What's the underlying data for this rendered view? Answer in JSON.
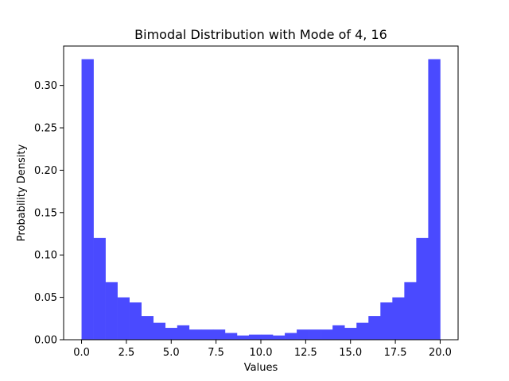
{
  "chart_data": {
    "type": "bar",
    "title": "Bimodal Distribution with Mode of 4, 16",
    "xlabel": "Values",
    "ylabel": "Probability Density",
    "xlim": [
      -1,
      21
    ],
    "ylim": [
      0,
      0.3465
    ],
    "xticks": [
      0,
      2.5,
      5,
      7.5,
      10,
      12.5,
      15,
      17.5,
      20
    ],
    "xtick_labels": [
      "0.0",
      "2.5",
      "5.0",
      "7.5",
      "10.0",
      "12.5",
      "15.0",
      "17.5",
      "20.0"
    ],
    "yticks": [
      0,
      0.05,
      0.1,
      0.15,
      0.2,
      0.25,
      0.3
    ],
    "ytick_labels": [
      "0.00",
      "0.05",
      "0.10",
      "0.15",
      "0.20",
      "0.25",
      "0.30"
    ],
    "bin_edges": [
      0,
      0.6667,
      1.3333,
      2,
      2.6667,
      3.3333,
      4,
      4.6667,
      5.3333,
      6,
      6.6667,
      7.3333,
      8,
      8.6667,
      9.3333,
      10,
      10.6667,
      11.3333,
      12,
      12.6667,
      13.3333,
      14,
      14.6667,
      15.3333,
      16,
      16.6667,
      17.3333,
      18,
      18.6667,
      19.3333,
      20
    ],
    "values": [
      0.331,
      0.12,
      0.068,
      0.05,
      0.044,
      0.028,
      0.02,
      0.014,
      0.017,
      0.012,
      0.012,
      0.012,
      0.008,
      0.005,
      0.006,
      0.006,
      0.005,
      0.008,
      0.012,
      0.012,
      0.012,
      0.017,
      0.014,
      0.02,
      0.028,
      0.044,
      0.05,
      0.068,
      0.12,
      0.331
    ],
    "bar_color": "#4a4aff",
    "grid": false,
    "legend": "none"
  }
}
